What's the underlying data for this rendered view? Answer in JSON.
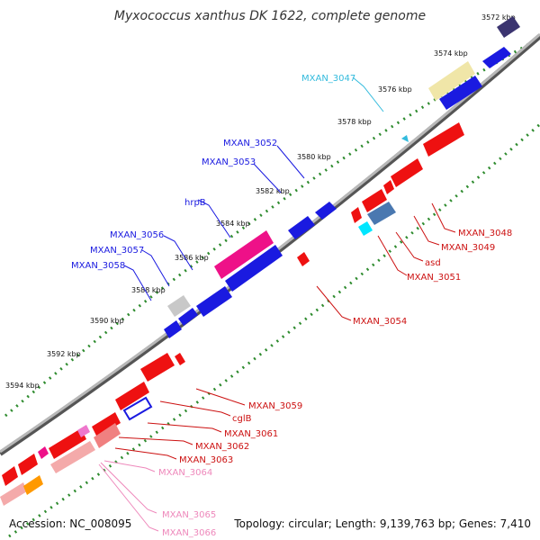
{
  "title": "Myxococcus xanthus DK 1622, complete genome",
  "footer": {
    "accession": "Accession: NC_008095",
    "summary": "Topology: circular; Length: 9,139,763 bp; Genes: 7,410"
  },
  "colors": {
    "backbone": "#8c8c8c",
    "ruler": "#2e8b2e",
    "forward_label": "#1a1acc",
    "reverse_label": "#cc1111",
    "light_label": "#ee88bb",
    "cyan_label": "#33bbdd"
  },
  "kbp_ticks": [
    "3572 kbp",
    "3574 kbp",
    "3576 kbp",
    "3578 kbp",
    "3580 kbp",
    "3582 kbp",
    "3584 kbp",
    "3586 kbp",
    "3588 kbp",
    "3590 kbp",
    "3592 kbp",
    "3594 kbp"
  ],
  "gene_labels": [
    {
      "text": "MXAN_3047",
      "tone": "cyan"
    },
    {
      "text": "MXAN_3052",
      "tone": "forward"
    },
    {
      "text": "MXAN_3053",
      "tone": "forward"
    },
    {
      "text": "hrpB",
      "tone": "forward"
    },
    {
      "text": "MXAN_3056",
      "tone": "forward"
    },
    {
      "text": "MXAN_3057",
      "tone": "forward"
    },
    {
      "text": "MXAN_3058",
      "tone": "forward"
    },
    {
      "text": "MXAN_3048",
      "tone": "reverse"
    },
    {
      "text": "MXAN_3049",
      "tone": "reverse"
    },
    {
      "text": "asd",
      "tone": "reverse"
    },
    {
      "text": "MXAN_3051",
      "tone": "reverse"
    },
    {
      "text": "MXAN_3054",
      "tone": "reverse"
    },
    {
      "text": "MXAN_3059",
      "tone": "reverse"
    },
    {
      "text": "cglB",
      "tone": "reverse"
    },
    {
      "text": "MXAN_3061",
      "tone": "reverse"
    },
    {
      "text": "MXAN_3062",
      "tone": "reverse"
    },
    {
      "text": "MXAN_3063",
      "tone": "reverse"
    },
    {
      "text": "MXAN_3064",
      "tone": "light"
    },
    {
      "text": "MXAN_3065",
      "tone": "light"
    },
    {
      "text": "MXAN_3066",
      "tone": "light"
    }
  ],
  "legend_icons": [
    "forward-gene-arrow-icon",
    "reverse-gene-arrow-icon"
  ]
}
